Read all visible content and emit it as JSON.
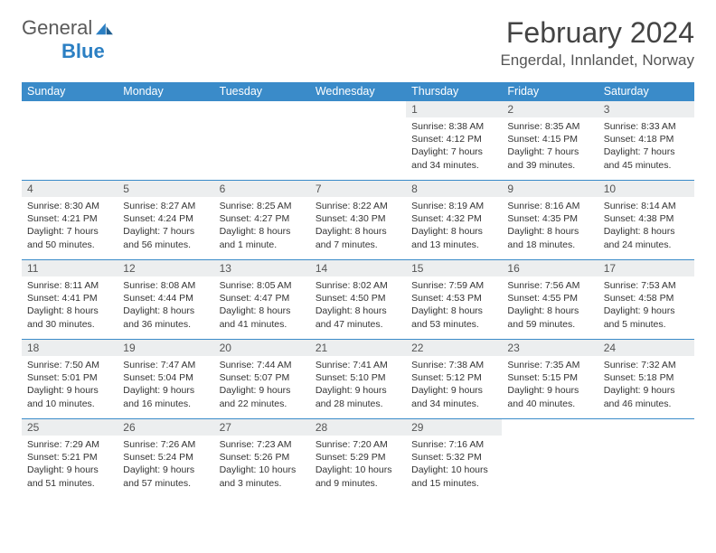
{
  "logo": {
    "word1": "General",
    "word2": "Blue"
  },
  "title": "February 2024",
  "location": "Engerdal, Innlandet, Norway",
  "dow": [
    "Sunday",
    "Monday",
    "Tuesday",
    "Wednesday",
    "Thursday",
    "Friday",
    "Saturday"
  ],
  "colors": {
    "header_bar": "#3a8bc9",
    "row_divider": "#3a8bc9",
    "daynum_bg": "#eceeef",
    "text": "#333333",
    "logo_accent": "#2b7fc3"
  },
  "typography": {
    "title_size_pt": 24,
    "location_size_pt": 13,
    "dow_size_pt": 9.5,
    "cell_size_pt": 8
  },
  "weeks": [
    [
      {
        "blank": true
      },
      {
        "blank": true
      },
      {
        "blank": true
      },
      {
        "blank": true
      },
      {
        "n": "1",
        "sunrise": "Sunrise: 8:38 AM",
        "sunset": "Sunset: 4:12 PM",
        "day1": "Daylight: 7 hours",
        "day2": "and 34 minutes."
      },
      {
        "n": "2",
        "sunrise": "Sunrise: 8:35 AM",
        "sunset": "Sunset: 4:15 PM",
        "day1": "Daylight: 7 hours",
        "day2": "and 39 minutes."
      },
      {
        "n": "3",
        "sunrise": "Sunrise: 8:33 AM",
        "sunset": "Sunset: 4:18 PM",
        "day1": "Daylight: 7 hours",
        "day2": "and 45 minutes."
      }
    ],
    [
      {
        "n": "4",
        "sunrise": "Sunrise: 8:30 AM",
        "sunset": "Sunset: 4:21 PM",
        "day1": "Daylight: 7 hours",
        "day2": "and 50 minutes."
      },
      {
        "n": "5",
        "sunrise": "Sunrise: 8:27 AM",
        "sunset": "Sunset: 4:24 PM",
        "day1": "Daylight: 7 hours",
        "day2": "and 56 minutes."
      },
      {
        "n": "6",
        "sunrise": "Sunrise: 8:25 AM",
        "sunset": "Sunset: 4:27 PM",
        "day1": "Daylight: 8 hours",
        "day2": "and 1 minute."
      },
      {
        "n": "7",
        "sunrise": "Sunrise: 8:22 AM",
        "sunset": "Sunset: 4:30 PM",
        "day1": "Daylight: 8 hours",
        "day2": "and 7 minutes."
      },
      {
        "n": "8",
        "sunrise": "Sunrise: 8:19 AM",
        "sunset": "Sunset: 4:32 PM",
        "day1": "Daylight: 8 hours",
        "day2": "and 13 minutes."
      },
      {
        "n": "9",
        "sunrise": "Sunrise: 8:16 AM",
        "sunset": "Sunset: 4:35 PM",
        "day1": "Daylight: 8 hours",
        "day2": "and 18 minutes."
      },
      {
        "n": "10",
        "sunrise": "Sunrise: 8:14 AM",
        "sunset": "Sunset: 4:38 PM",
        "day1": "Daylight: 8 hours",
        "day2": "and 24 minutes."
      }
    ],
    [
      {
        "n": "11",
        "sunrise": "Sunrise: 8:11 AM",
        "sunset": "Sunset: 4:41 PM",
        "day1": "Daylight: 8 hours",
        "day2": "and 30 minutes."
      },
      {
        "n": "12",
        "sunrise": "Sunrise: 8:08 AM",
        "sunset": "Sunset: 4:44 PM",
        "day1": "Daylight: 8 hours",
        "day2": "and 36 minutes."
      },
      {
        "n": "13",
        "sunrise": "Sunrise: 8:05 AM",
        "sunset": "Sunset: 4:47 PM",
        "day1": "Daylight: 8 hours",
        "day2": "and 41 minutes."
      },
      {
        "n": "14",
        "sunrise": "Sunrise: 8:02 AM",
        "sunset": "Sunset: 4:50 PM",
        "day1": "Daylight: 8 hours",
        "day2": "and 47 minutes."
      },
      {
        "n": "15",
        "sunrise": "Sunrise: 7:59 AM",
        "sunset": "Sunset: 4:53 PM",
        "day1": "Daylight: 8 hours",
        "day2": "and 53 minutes."
      },
      {
        "n": "16",
        "sunrise": "Sunrise: 7:56 AM",
        "sunset": "Sunset: 4:55 PM",
        "day1": "Daylight: 8 hours",
        "day2": "and 59 minutes."
      },
      {
        "n": "17",
        "sunrise": "Sunrise: 7:53 AM",
        "sunset": "Sunset: 4:58 PM",
        "day1": "Daylight: 9 hours",
        "day2": "and 5 minutes."
      }
    ],
    [
      {
        "n": "18",
        "sunrise": "Sunrise: 7:50 AM",
        "sunset": "Sunset: 5:01 PM",
        "day1": "Daylight: 9 hours",
        "day2": "and 10 minutes."
      },
      {
        "n": "19",
        "sunrise": "Sunrise: 7:47 AM",
        "sunset": "Sunset: 5:04 PM",
        "day1": "Daylight: 9 hours",
        "day2": "and 16 minutes."
      },
      {
        "n": "20",
        "sunrise": "Sunrise: 7:44 AM",
        "sunset": "Sunset: 5:07 PM",
        "day1": "Daylight: 9 hours",
        "day2": "and 22 minutes."
      },
      {
        "n": "21",
        "sunrise": "Sunrise: 7:41 AM",
        "sunset": "Sunset: 5:10 PM",
        "day1": "Daylight: 9 hours",
        "day2": "and 28 minutes."
      },
      {
        "n": "22",
        "sunrise": "Sunrise: 7:38 AM",
        "sunset": "Sunset: 5:12 PM",
        "day1": "Daylight: 9 hours",
        "day2": "and 34 minutes."
      },
      {
        "n": "23",
        "sunrise": "Sunrise: 7:35 AM",
        "sunset": "Sunset: 5:15 PM",
        "day1": "Daylight: 9 hours",
        "day2": "and 40 minutes."
      },
      {
        "n": "24",
        "sunrise": "Sunrise: 7:32 AM",
        "sunset": "Sunset: 5:18 PM",
        "day1": "Daylight: 9 hours",
        "day2": "and 46 minutes."
      }
    ],
    [
      {
        "n": "25",
        "sunrise": "Sunrise: 7:29 AM",
        "sunset": "Sunset: 5:21 PM",
        "day1": "Daylight: 9 hours",
        "day2": "and 51 minutes."
      },
      {
        "n": "26",
        "sunrise": "Sunrise: 7:26 AM",
        "sunset": "Sunset: 5:24 PM",
        "day1": "Daylight: 9 hours",
        "day2": "and 57 minutes."
      },
      {
        "n": "27",
        "sunrise": "Sunrise: 7:23 AM",
        "sunset": "Sunset: 5:26 PM",
        "day1": "Daylight: 10 hours",
        "day2": "and 3 minutes."
      },
      {
        "n": "28",
        "sunrise": "Sunrise: 7:20 AM",
        "sunset": "Sunset: 5:29 PM",
        "day1": "Daylight: 10 hours",
        "day2": "and 9 minutes."
      },
      {
        "n": "29",
        "sunrise": "Sunrise: 7:16 AM",
        "sunset": "Sunset: 5:32 PM",
        "day1": "Daylight: 10 hours",
        "day2": "and 15 minutes."
      },
      {
        "blank": true
      },
      {
        "blank": true
      }
    ]
  ]
}
